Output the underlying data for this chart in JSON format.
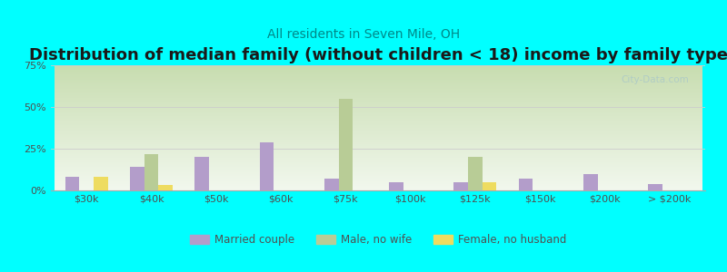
{
  "title": "Distribution of median family (without children < 18) income by family type",
  "subtitle": "All residents in Seven Mile, OH",
  "categories": [
    "$30k",
    "$40k",
    "$50k",
    "$60k",
    "$75k",
    "$100k",
    "$125k",
    "$150k",
    "$200k",
    "> $200k"
  ],
  "married_couple": [
    8,
    14,
    20,
    29,
    7,
    5,
    5,
    7,
    10,
    4
  ],
  "male_no_wife": [
    0,
    22,
    0,
    0,
    55,
    0,
    20,
    0,
    0,
    0
  ],
  "female_no_husband": [
    8,
    3,
    0,
    0,
    0,
    0,
    5,
    0,
    0,
    0
  ],
  "married_color": "#b39dca",
  "male_color": "#b8cc96",
  "female_color": "#eedc60",
  "bg_color": "#00ffff",
  "ylim": [
    0,
    75
  ],
  "yticks": [
    0,
    25,
    50,
    75
  ],
  "ytick_labels": [
    "0%",
    "25%",
    "50%",
    "75%"
  ],
  "bar_width": 0.22,
  "title_fontsize": 13,
  "subtitle_fontsize": 10,
  "watermark": "City-Data.com",
  "gradient_top": "#c8ddb0",
  "gradient_bottom": "#f2f8ee"
}
